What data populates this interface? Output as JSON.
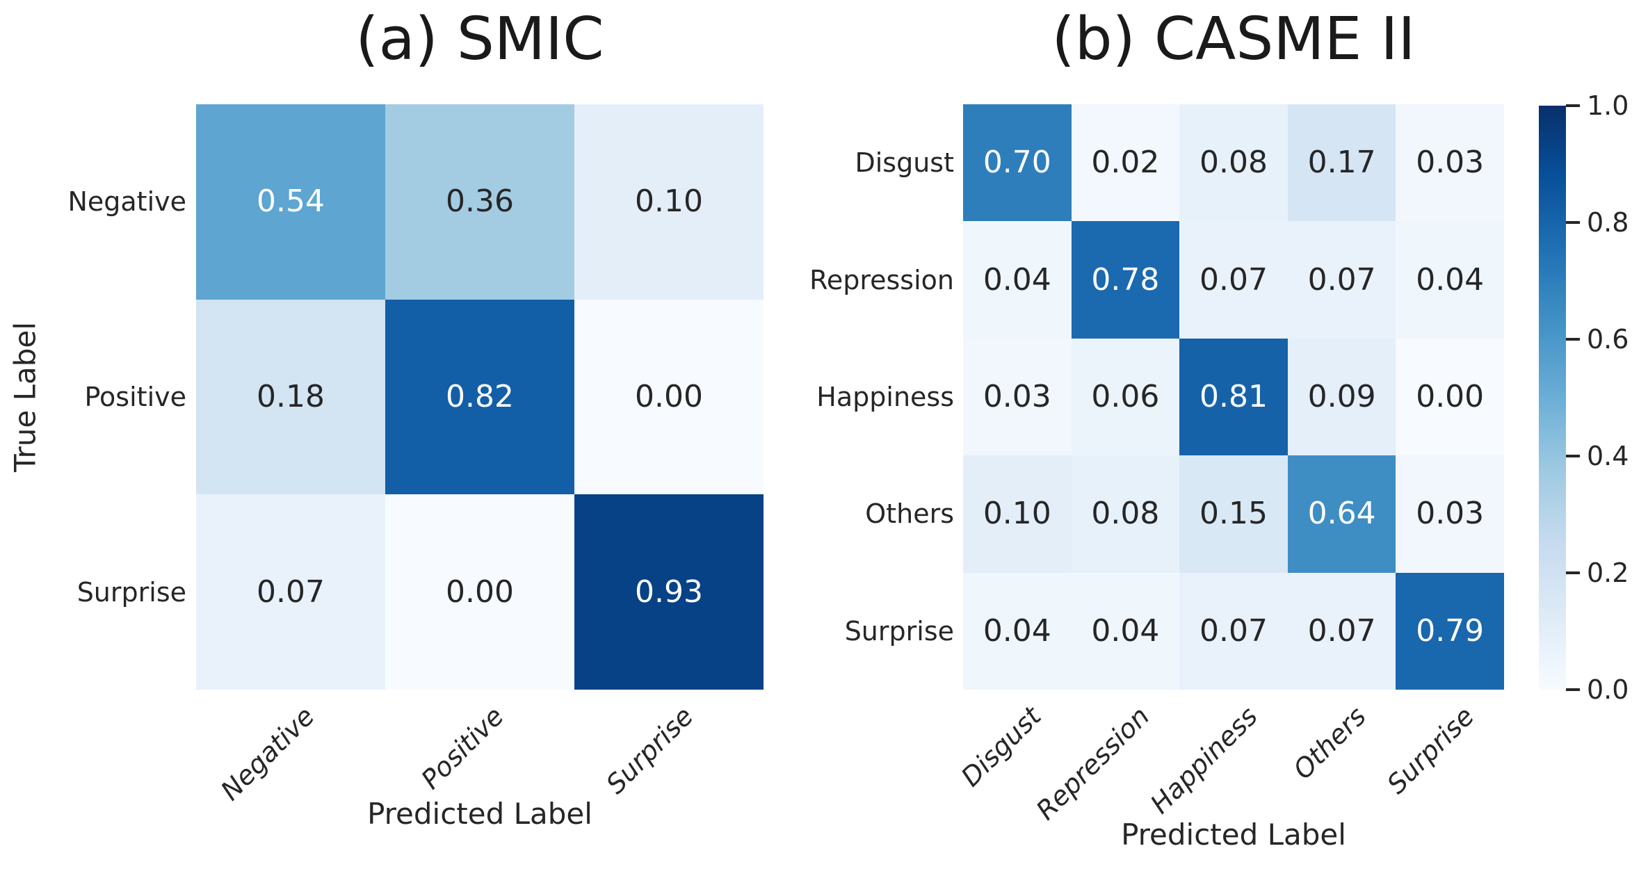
{
  "chart_data": [
    {
      "type": "heatmap",
      "title": "(a) SMIC",
      "xlabel": "Predicted Label",
      "ylabel": "True Label",
      "x_tick_labels": [
        "Negative",
        "Positive",
        "Surprise"
      ],
      "y_tick_labels": [
        "Negative",
        "Positive",
        "Surprise"
      ],
      "values": [
        [
          0.54,
          0.36,
          0.1
        ],
        [
          0.18,
          0.82,
          0.0
        ],
        [
          0.07,
          0.0,
          0.93
        ]
      ],
      "value_decimals": 2,
      "vmin": 0,
      "vmax": 1,
      "colormap": "Blues"
    },
    {
      "type": "heatmap",
      "title": "(b) CASME II",
      "xlabel": "Predicted Label",
      "ylabel": "",
      "x_tick_labels": [
        "Disgust",
        "Repression",
        "Happiness",
        "Others",
        "Surprise"
      ],
      "y_tick_labels": [
        "Disgust",
        "Repression",
        "Happiness",
        "Others",
        "Surprise"
      ],
      "values": [
        [
          0.7,
          0.02,
          0.08,
          0.17,
          0.03
        ],
        [
          0.04,
          0.78,
          0.07,
          0.07,
          0.04
        ],
        [
          0.03,
          0.06,
          0.81,
          0.09,
          0.0
        ],
        [
          0.1,
          0.08,
          0.15,
          0.64,
          0.03
        ],
        [
          0.04,
          0.04,
          0.07,
          0.07,
          0.79
        ]
      ],
      "value_decimals": 2,
      "vmin": 0,
      "vmax": 1,
      "colormap": "Blues"
    }
  ],
  "colorbar": {
    "tick_labels": [
      "1.0",
      "0.8",
      "0.6",
      "0.4",
      "0.2",
      "0.0"
    ],
    "tick_values": [
      1.0,
      0.8,
      0.6,
      0.4,
      0.2,
      0.0
    ],
    "colormap": "Blues"
  },
  "colors": {
    "blues_anchors": [
      "#f7fbff",
      "#deebf7",
      "#c6dbef",
      "#9ecae1",
      "#6baed6",
      "#4292c6",
      "#2171b5",
      "#08519c",
      "#08306b"
    ],
    "dark_text": "#262626",
    "light_text": "#ffffff",
    "title_color": "#1a1a1a",
    "background": "#ffffff"
  }
}
